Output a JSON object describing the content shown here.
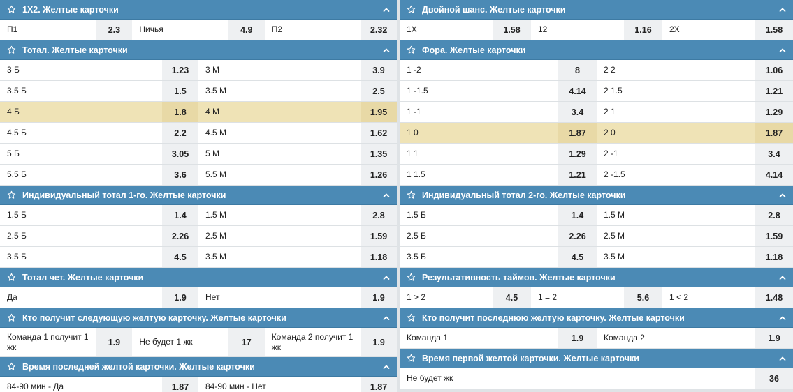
{
  "left": [
    {
      "title": "1Х2. Желтые карточки",
      "rows": [
        {
          "cells": [
            [
              "П1",
              "2.3"
            ],
            [
              "Ничья",
              "4.9"
            ],
            [
              "П2",
              "2.32"
            ]
          ]
        }
      ]
    },
    {
      "title": "Тотал. Желтые карточки",
      "rows": [
        {
          "cells": [
            [
              "3 Б",
              "1.23"
            ],
            [
              "3 М",
              "3.9"
            ]
          ]
        },
        {
          "cells": [
            [
              "3.5 Б",
              "1.5"
            ],
            [
              "3.5 М",
              "2.5"
            ]
          ]
        },
        {
          "cells": [
            [
              "4 Б",
              "1.8"
            ],
            [
              "4 М",
              "1.95"
            ]
          ],
          "hl": true
        },
        {
          "cells": [
            [
              "4.5 Б",
              "2.2"
            ],
            [
              "4.5 М",
              "1.62"
            ]
          ]
        },
        {
          "cells": [
            [
              "5 Б",
              "3.05"
            ],
            [
              "5 М",
              "1.35"
            ]
          ]
        },
        {
          "cells": [
            [
              "5.5 Б",
              "3.6"
            ],
            [
              "5.5 М",
              "1.26"
            ]
          ]
        }
      ]
    },
    {
      "title": "Индивидуальный тотал 1-го. Желтые карточки",
      "rows": [
        {
          "cells": [
            [
              "1.5 Б",
              "1.4"
            ],
            [
              "1.5 М",
              "2.8"
            ]
          ]
        },
        {
          "cells": [
            [
              "2.5 Б",
              "2.26"
            ],
            [
              "2.5 М",
              "1.59"
            ]
          ]
        },
        {
          "cells": [
            [
              "3.5 Б",
              "4.5"
            ],
            [
              "3.5 М",
              "1.18"
            ]
          ]
        }
      ]
    },
    {
      "title": "Тотал чет. Желтые карточки",
      "rows": [
        {
          "cells": [
            [
              "Да",
              "1.9"
            ],
            [
              "Нет",
              "1.9"
            ]
          ]
        }
      ]
    },
    {
      "title": "Кто получит следующую желтую карточку. Желтые карточки",
      "rows": [
        {
          "cells": [
            [
              "Команда 1 получит 1 жк",
              "1.9"
            ],
            [
              "Не будет 1 жк",
              "17"
            ],
            [
              "Команда 2 получит 1 жк",
              "1.9"
            ]
          ],
          "tall": true
        }
      ]
    },
    {
      "title": "Время последней желтой карточки. Желтые карточки",
      "rows": [
        {
          "cells": [
            [
              "84-90 мин - Да",
              "1.87"
            ],
            [
              "84-90 мин - Нет",
              "1.87"
            ]
          ]
        }
      ]
    }
  ],
  "right": [
    {
      "title": "Двойной шанс. Желтые карточки",
      "rows": [
        {
          "cells": [
            [
              "1X",
              "1.58"
            ],
            [
              "12",
              "1.16"
            ],
            [
              "2X",
              "1.58"
            ]
          ]
        }
      ]
    },
    {
      "title": "Фора. Желтые карточки",
      "rows": [
        {
          "cells": [
            [
              "1 -2",
              "8"
            ],
            [
              "2 2",
              "1.06"
            ]
          ]
        },
        {
          "cells": [
            [
              "1 -1.5",
              "4.14"
            ],
            [
              "2 1.5",
              "1.21"
            ]
          ]
        },
        {
          "cells": [
            [
              "1 -1",
              "3.4"
            ],
            [
              "2 1",
              "1.29"
            ]
          ]
        },
        {
          "cells": [
            [
              "1 0",
              "1.87"
            ],
            [
              "2 0",
              "1.87"
            ]
          ],
          "hl": true
        },
        {
          "cells": [
            [
              "1 1",
              "1.29"
            ],
            [
              "2 -1",
              "3.4"
            ]
          ]
        },
        {
          "cells": [
            [
              "1 1.5",
              "1.21"
            ],
            [
              "2 -1.5",
              "4.14"
            ]
          ]
        }
      ]
    },
    {
      "title": "Индивидуальный тотал 2-го. Желтые карточки",
      "rows": [
        {
          "cells": [
            [
              "1.5 Б",
              "1.4"
            ],
            [
              "1.5 М",
              "2.8"
            ]
          ]
        },
        {
          "cells": [
            [
              "2.5 Б",
              "2.26"
            ],
            [
              "2.5 М",
              "1.59"
            ]
          ]
        },
        {
          "cells": [
            [
              "3.5 Б",
              "4.5"
            ],
            [
              "3.5 М",
              "1.18"
            ]
          ]
        }
      ]
    },
    {
      "title": "Результативность таймов. Желтые карточки",
      "rows": [
        {
          "cells": [
            [
              "1 > 2",
              "4.5"
            ],
            [
              "1 = 2",
              "5.6"
            ],
            [
              "1 < 2",
              "1.48"
            ]
          ]
        }
      ]
    },
    {
      "title": "Кто получит последнюю желтую карточку. Желтые карточки",
      "rows": [
        {
          "cells": [
            [
              "Команда 1",
              "1.9"
            ],
            [
              "Команда 2",
              "1.9"
            ]
          ]
        }
      ]
    },
    {
      "title": "Время первой желтой карточки. Желтые карточки",
      "rows": [
        {
          "cells": [
            [
              "Не будет жк",
              "36"
            ]
          ]
        }
      ]
    }
  ],
  "icons": {
    "favorite": "star-outline-icon",
    "collapse": "chevron-up-icon"
  },
  "colors": {
    "header": "#4b8ab5",
    "highlight": "#efe3b6",
    "odd_cell": "#eef0f2"
  }
}
